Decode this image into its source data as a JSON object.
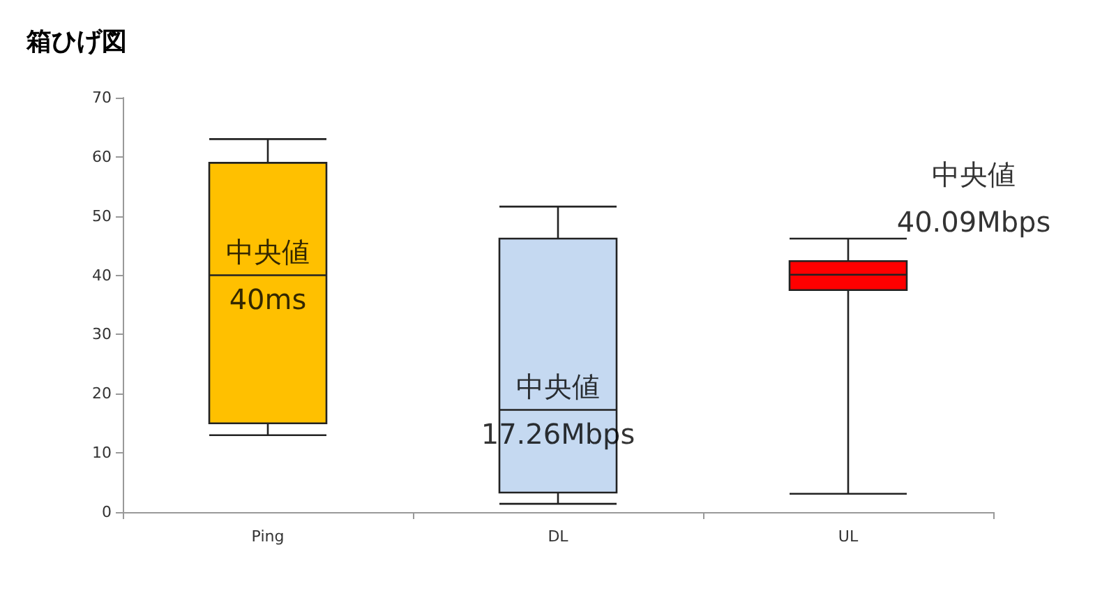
{
  "chart_data": {
    "type": "box",
    "title": "箱ひげ図",
    "categories": [
      "Ping",
      "DL",
      "UL"
    ],
    "boxes": [
      {
        "low": 13,
        "q1": 15,
        "median": 40,
        "q3": 59,
        "high": 63
      },
      {
        "low": 1.4,
        "q1": 3.3,
        "median": 17.26,
        "q3": 46.2,
        "high": 51.6
      },
      {
        "low": 3.1,
        "q1": 37.5,
        "median": 40.09,
        "q3": 42.4,
        "high": 46.2
      }
    ],
    "colors": [
      "#ffc000",
      "#c5d9f1",
      "#ff0000"
    ],
    "ylim": [
      0,
      70
    ],
    "yticks": [
      0,
      10,
      20,
      30,
      40,
      50,
      60,
      70
    ],
    "grid": false,
    "annotations": [
      {
        "text": "中央値\n40ms",
        "x": "Ping",
        "y": 40
      },
      {
        "text": "中央値\n17.26Mbps",
        "x": "DL",
        "y": 17.26
      },
      {
        "text": "中央値\n40.09Mbps",
        "x": "UL",
        "y": 40.09
      }
    ]
  }
}
